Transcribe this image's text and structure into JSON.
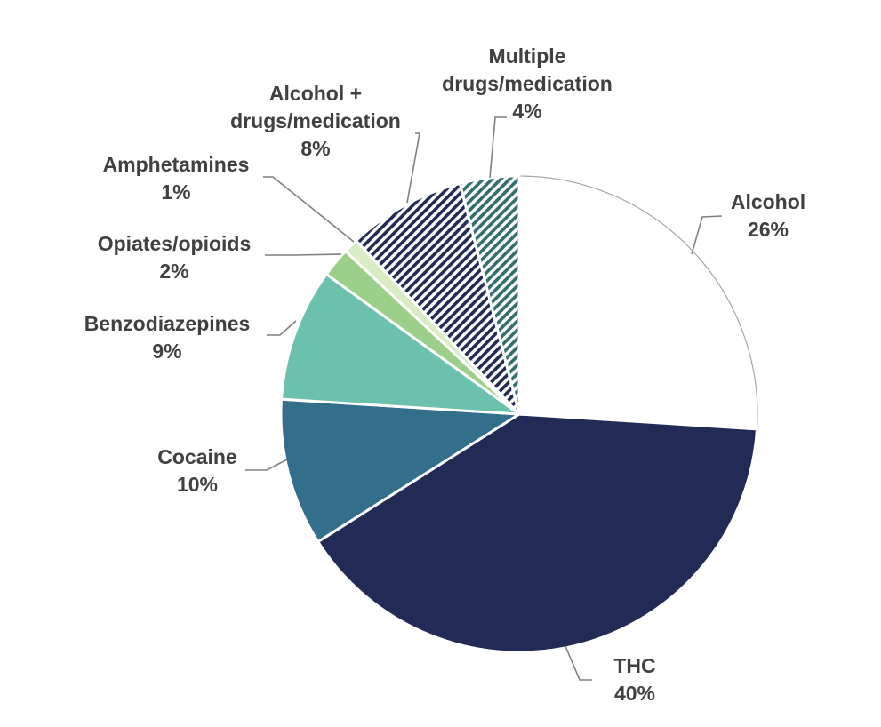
{
  "chart_data": {
    "type": "pie",
    "title": "",
    "start_angle_deg": 0,
    "direction": "clockwise",
    "slices": [
      {
        "name": "Alcohol",
        "value": 26,
        "label": "26%",
        "color": "#ffffff",
        "outline": "#a6a6a6",
        "pattern": "none"
      },
      {
        "name": "THC",
        "value": 40,
        "label": "40%",
        "color": "#222b55",
        "pattern": "none"
      },
      {
        "name": "Cocaine",
        "value": 10,
        "label": "10%",
        "color": "#336e8a",
        "pattern": "none"
      },
      {
        "name": "Benzodiazepines",
        "value": 9,
        "label": "9%",
        "color": "#6cc0ae",
        "pattern": "none"
      },
      {
        "name": "Opiates/opioids",
        "value": 2,
        "label": "2%",
        "color": "#9ccf8a",
        "pattern": "none"
      },
      {
        "name": "Amphetamines",
        "value": 1,
        "label": "1%",
        "color": "#d9ecc4",
        "pattern": "none"
      },
      {
        "name": "Alcohol + drugs/medication",
        "value": 8,
        "label": "8%",
        "color": "#222b55",
        "pattern": "diagonal-stripes"
      },
      {
        "name": "Multiple drugs/medication",
        "value": 4,
        "label": "4%",
        "color": "#336e6e",
        "pattern": "diagonal-stripes"
      }
    ]
  },
  "labels": [
    {
      "lines": [
        "Alcohol",
        "26%"
      ]
    },
    {
      "lines": [
        "THC",
        "40%"
      ]
    },
    {
      "lines": [
        "Cocaine",
        "10%"
      ]
    },
    {
      "lines": [
        "Benzodiazepines",
        "9%"
      ]
    },
    {
      "lines": [
        "Opiates/opioids",
        "2%"
      ]
    },
    {
      "lines": [
        "Amphetamines",
        "1%"
      ]
    },
    {
      "lines": [
        "Alcohol +",
        "drugs/medication",
        "8%"
      ]
    },
    {
      "lines": [
        "Multiple",
        "drugs/medication",
        "4%"
      ]
    }
  ]
}
